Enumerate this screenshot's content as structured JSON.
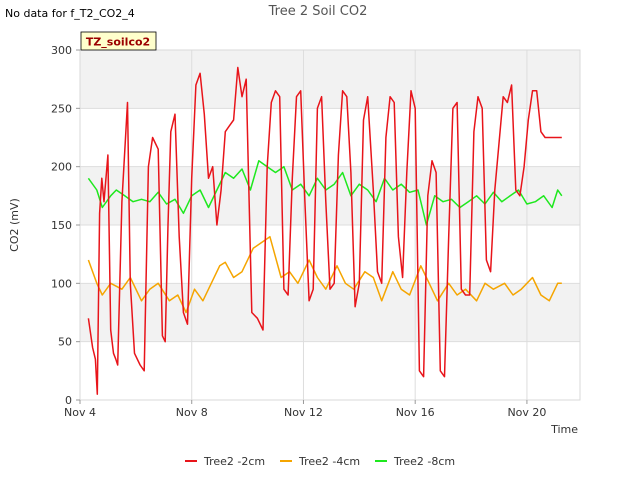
{
  "header": {
    "nodata_text": "No data for f_T2_CO2_4"
  },
  "chart_data": {
    "type": "line",
    "title": "Tree 2 Soil CO2",
    "xlabel": "Time",
    "ylabel": "CO2 (mV)",
    "badge": "TZ_soilco2",
    "xlim": [
      4.0,
      21.9
    ],
    "ylim": [
      0,
      300
    ],
    "yticks": [
      0,
      50,
      100,
      150,
      200,
      250,
      300
    ],
    "xticks": [
      {
        "value": 4,
        "label": "Nov 4"
      },
      {
        "value": 8,
        "label": "Nov 8"
      },
      {
        "value": 12,
        "label": "Nov 12"
      },
      {
        "value": 16,
        "label": "Nov 16"
      },
      {
        "value": 20,
        "label": "Nov 20"
      }
    ],
    "grid": true,
    "band_fill": "#f2f2f2",
    "legend_position": "bottom",
    "x_unit": "day of November",
    "series": [
      {
        "name": "Tree2 -2cm",
        "color": "#e8141a",
        "x": [
          4.3,
          4.45,
          4.55,
          4.62,
          4.7,
          4.78,
          4.86,
          5.0,
          5.1,
          5.2,
          5.28,
          5.35,
          5.5,
          5.7,
          5.8,
          5.95,
          6.15,
          6.3,
          6.45,
          6.6,
          6.8,
          6.95,
          7.05,
          7.15,
          7.25,
          7.4,
          7.55,
          7.7,
          7.85,
          8.0,
          8.15,
          8.3,
          8.45,
          8.6,
          8.75,
          8.9,
          9.05,
          9.2,
          9.35,
          9.5,
          9.65,
          9.8,
          9.95,
          10.15,
          10.35,
          10.55,
          10.7,
          10.85,
          11.0,
          11.15,
          11.3,
          11.45,
          11.6,
          11.75,
          11.9,
          12.05,
          12.2,
          12.35,
          12.5,
          12.65,
          12.8,
          12.95,
          13.1,
          13.25,
          13.4,
          13.55,
          13.7,
          13.85,
          14.0,
          14.15,
          14.3,
          14.5,
          14.65,
          14.8,
          14.95,
          15.1,
          15.25,
          15.4,
          15.55,
          15.7,
          15.85,
          16.0,
          16.15,
          16.3,
          16.45,
          16.6,
          16.75,
          16.9,
          17.05,
          17.2,
          17.35,
          17.5,
          17.65,
          17.8,
          17.95,
          18.1,
          18.25,
          18.4,
          18.55,
          18.7,
          18.85,
          19.0,
          19.15,
          19.3,
          19.45,
          19.6,
          19.75,
          19.9,
          20.05,
          20.2,
          20.35,
          20.5,
          20.65,
          20.8,
          20.95,
          21.1,
          21.25
        ],
        "values": [
          70,
          45,
          35,
          5,
          160,
          190,
          170,
          210,
          60,
          40,
          35,
          30,
          170,
          255,
          100,
          40,
          30,
          25,
          200,
          225,
          215,
          55,
          50,
          150,
          230,
          245,
          140,
          75,
          65,
          190,
          270,
          280,
          245,
          190,
          200,
          150,
          180,
          230,
          235,
          240,
          285,
          260,
          275,
          75,
          70,
          60,
          200,
          255,
          265,
          260,
          95,
          90,
          190,
          260,
          265,
          170,
          85,
          95,
          250,
          260,
          170,
          95,
          100,
          210,
          265,
          260,
          195,
          80,
          100,
          240,
          260,
          180,
          110,
          100,
          225,
          260,
          255,
          140,
          105,
          195,
          265,
          250,
          25,
          20,
          175,
          205,
          195,
          25,
          20,
          140,
          250,
          255,
          95,
          90,
          90,
          230,
          260,
          250,
          120,
          110,
          180,
          220,
          260,
          255,
          270,
          180,
          175,
          200,
          240,
          265,
          265,
          230,
          225,
          225,
          225,
          225,
          225
        ]
      },
      {
        "name": "Tree2 -4cm",
        "color": "#f5a500",
        "x": [
          4.3,
          4.6,
          4.8,
          5.1,
          5.5,
          5.8,
          6.2,
          6.5,
          6.8,
          7.2,
          7.5,
          7.8,
          8.1,
          8.4,
          8.7,
          9.0,
          9.2,
          9.5,
          9.8,
          10.2,
          10.5,
          10.8,
          11.2,
          11.5,
          11.8,
          12.2,
          12.5,
          12.8,
          13.2,
          13.5,
          13.8,
          14.2,
          14.5,
          14.8,
          15.2,
          15.5,
          15.8,
          16.2,
          16.5,
          16.8,
          17.2,
          17.5,
          17.8,
          18.2,
          18.5,
          18.8,
          19.2,
          19.5,
          19.8,
          20.2,
          20.5,
          20.8,
          21.1,
          21.25
        ],
        "values": [
          120,
          100,
          90,
          100,
          95,
          105,
          85,
          95,
          100,
          85,
          90,
          75,
          95,
          85,
          100,
          115,
          118,
          105,
          110,
          130,
          135,
          140,
          105,
          110,
          100,
          120,
          105,
          95,
          115,
          100,
          95,
          110,
          105,
          85,
          110,
          95,
          90,
          115,
          100,
          85,
          100,
          90,
          95,
          85,
          100,
          95,
          100,
          90,
          95,
          105,
          90,
          85,
          100,
          100
        ]
      },
      {
        "name": "Tree2 -8cm",
        "color": "#1ee81e",
        "x": [
          4.3,
          4.6,
          4.8,
          5.1,
          5.3,
          5.6,
          5.9,
          6.2,
          6.5,
          6.8,
          7.1,
          7.4,
          7.7,
          8.0,
          8.3,
          8.6,
          8.9,
          9.2,
          9.5,
          9.8,
          10.1,
          10.4,
          10.7,
          11.0,
          11.3,
          11.6,
          11.9,
          12.2,
          12.5,
          12.8,
          13.1,
          13.4,
          13.7,
          14.0,
          14.3,
          14.6,
          14.9,
          15.2,
          15.5,
          15.8,
          16.1,
          16.4,
          16.7,
          17.0,
          17.3,
          17.6,
          17.9,
          18.2,
          18.5,
          18.8,
          19.1,
          19.4,
          19.7,
          20.0,
          20.3,
          20.6,
          20.9,
          21.1,
          21.25
        ],
        "values": [
          190,
          180,
          165,
          175,
          180,
          175,
          170,
          172,
          170,
          178,
          168,
          172,
          160,
          175,
          180,
          165,
          180,
          195,
          190,
          198,
          180,
          205,
          200,
          195,
          200,
          180,
          185,
          175,
          190,
          180,
          185,
          195,
          175,
          185,
          180,
          170,
          190,
          180,
          185,
          178,
          180,
          150,
          175,
          170,
          172,
          165,
          170,
          175,
          168,
          178,
          170,
          175,
          180,
          168,
          170,
          175,
          165,
          180,
          175
        ]
      }
    ]
  }
}
